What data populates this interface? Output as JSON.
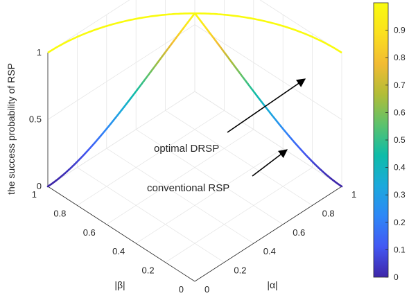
{
  "chart_data": {
    "type": "line",
    "view": "3d",
    "zlabel": "the success probability of RSP",
    "xlabel": "|α|",
    "ylabel": "|β|",
    "xlim": [
      0,
      1
    ],
    "ylim": [
      0,
      1
    ],
    "zlim": [
      0,
      1
    ],
    "x_ticks": [
      "0",
      "0.2",
      "0.4",
      "0.6",
      "0.8",
      "1"
    ],
    "y_ticks": [
      "0",
      "0.2",
      "0.4",
      "0.6",
      "0.8",
      "1"
    ],
    "z_ticks": [
      "0",
      "0.5",
      "1"
    ],
    "grid": true,
    "colormap": "parula",
    "colorbar": {
      "range": [
        0,
        1
      ],
      "ticks": [
        "0",
        "0.1",
        "0.2",
        "0.3",
        "0.4",
        "0.5",
        "0.6",
        "0.7",
        "0.8",
        "0.9"
      ],
      "colors": [
        "#3e26a8",
        "#4358f3",
        "#2e87f7",
        "#1ba9dc",
        "#0ebca8",
        "#5cc26d",
        "#b2bd37",
        "#f2bb33",
        "#fbe01e",
        "#f9fb0e"
      ]
    },
    "series": [
      {
        "name": "optimal DRSP",
        "curve": "alpha^2 + beta^2 = 1",
        "alpha": [
          1,
          0.9,
          0.8,
          0.7071,
          0.6,
          0.4,
          0.2,
          0
        ],
        "beta": [
          0,
          0.4359,
          0.6,
          0.7071,
          0.8,
          0.9165,
          0.9798,
          1
        ],
        "probability": [
          1,
          1,
          1,
          1,
          1,
          1,
          1,
          1
        ]
      },
      {
        "name": "conventional RSP",
        "curve": "alpha^2 + beta^2 = 1",
        "alpha": [
          1,
          0.9,
          0.8,
          0.7071,
          0.6,
          0.4,
          0.2,
          0
        ],
        "beta": [
          0,
          0.4359,
          0.6,
          0.7071,
          0.8,
          0.9165,
          0.9798,
          1
        ],
        "probability": [
          0,
          0.38,
          0.72,
          1,
          0.72,
          0.32,
          0.08,
          0
        ]
      }
    ],
    "annotations": [
      {
        "text": "optimal DRSP",
        "arrow": true
      },
      {
        "text": "conventional RSP",
        "arrow": true
      }
    ]
  }
}
